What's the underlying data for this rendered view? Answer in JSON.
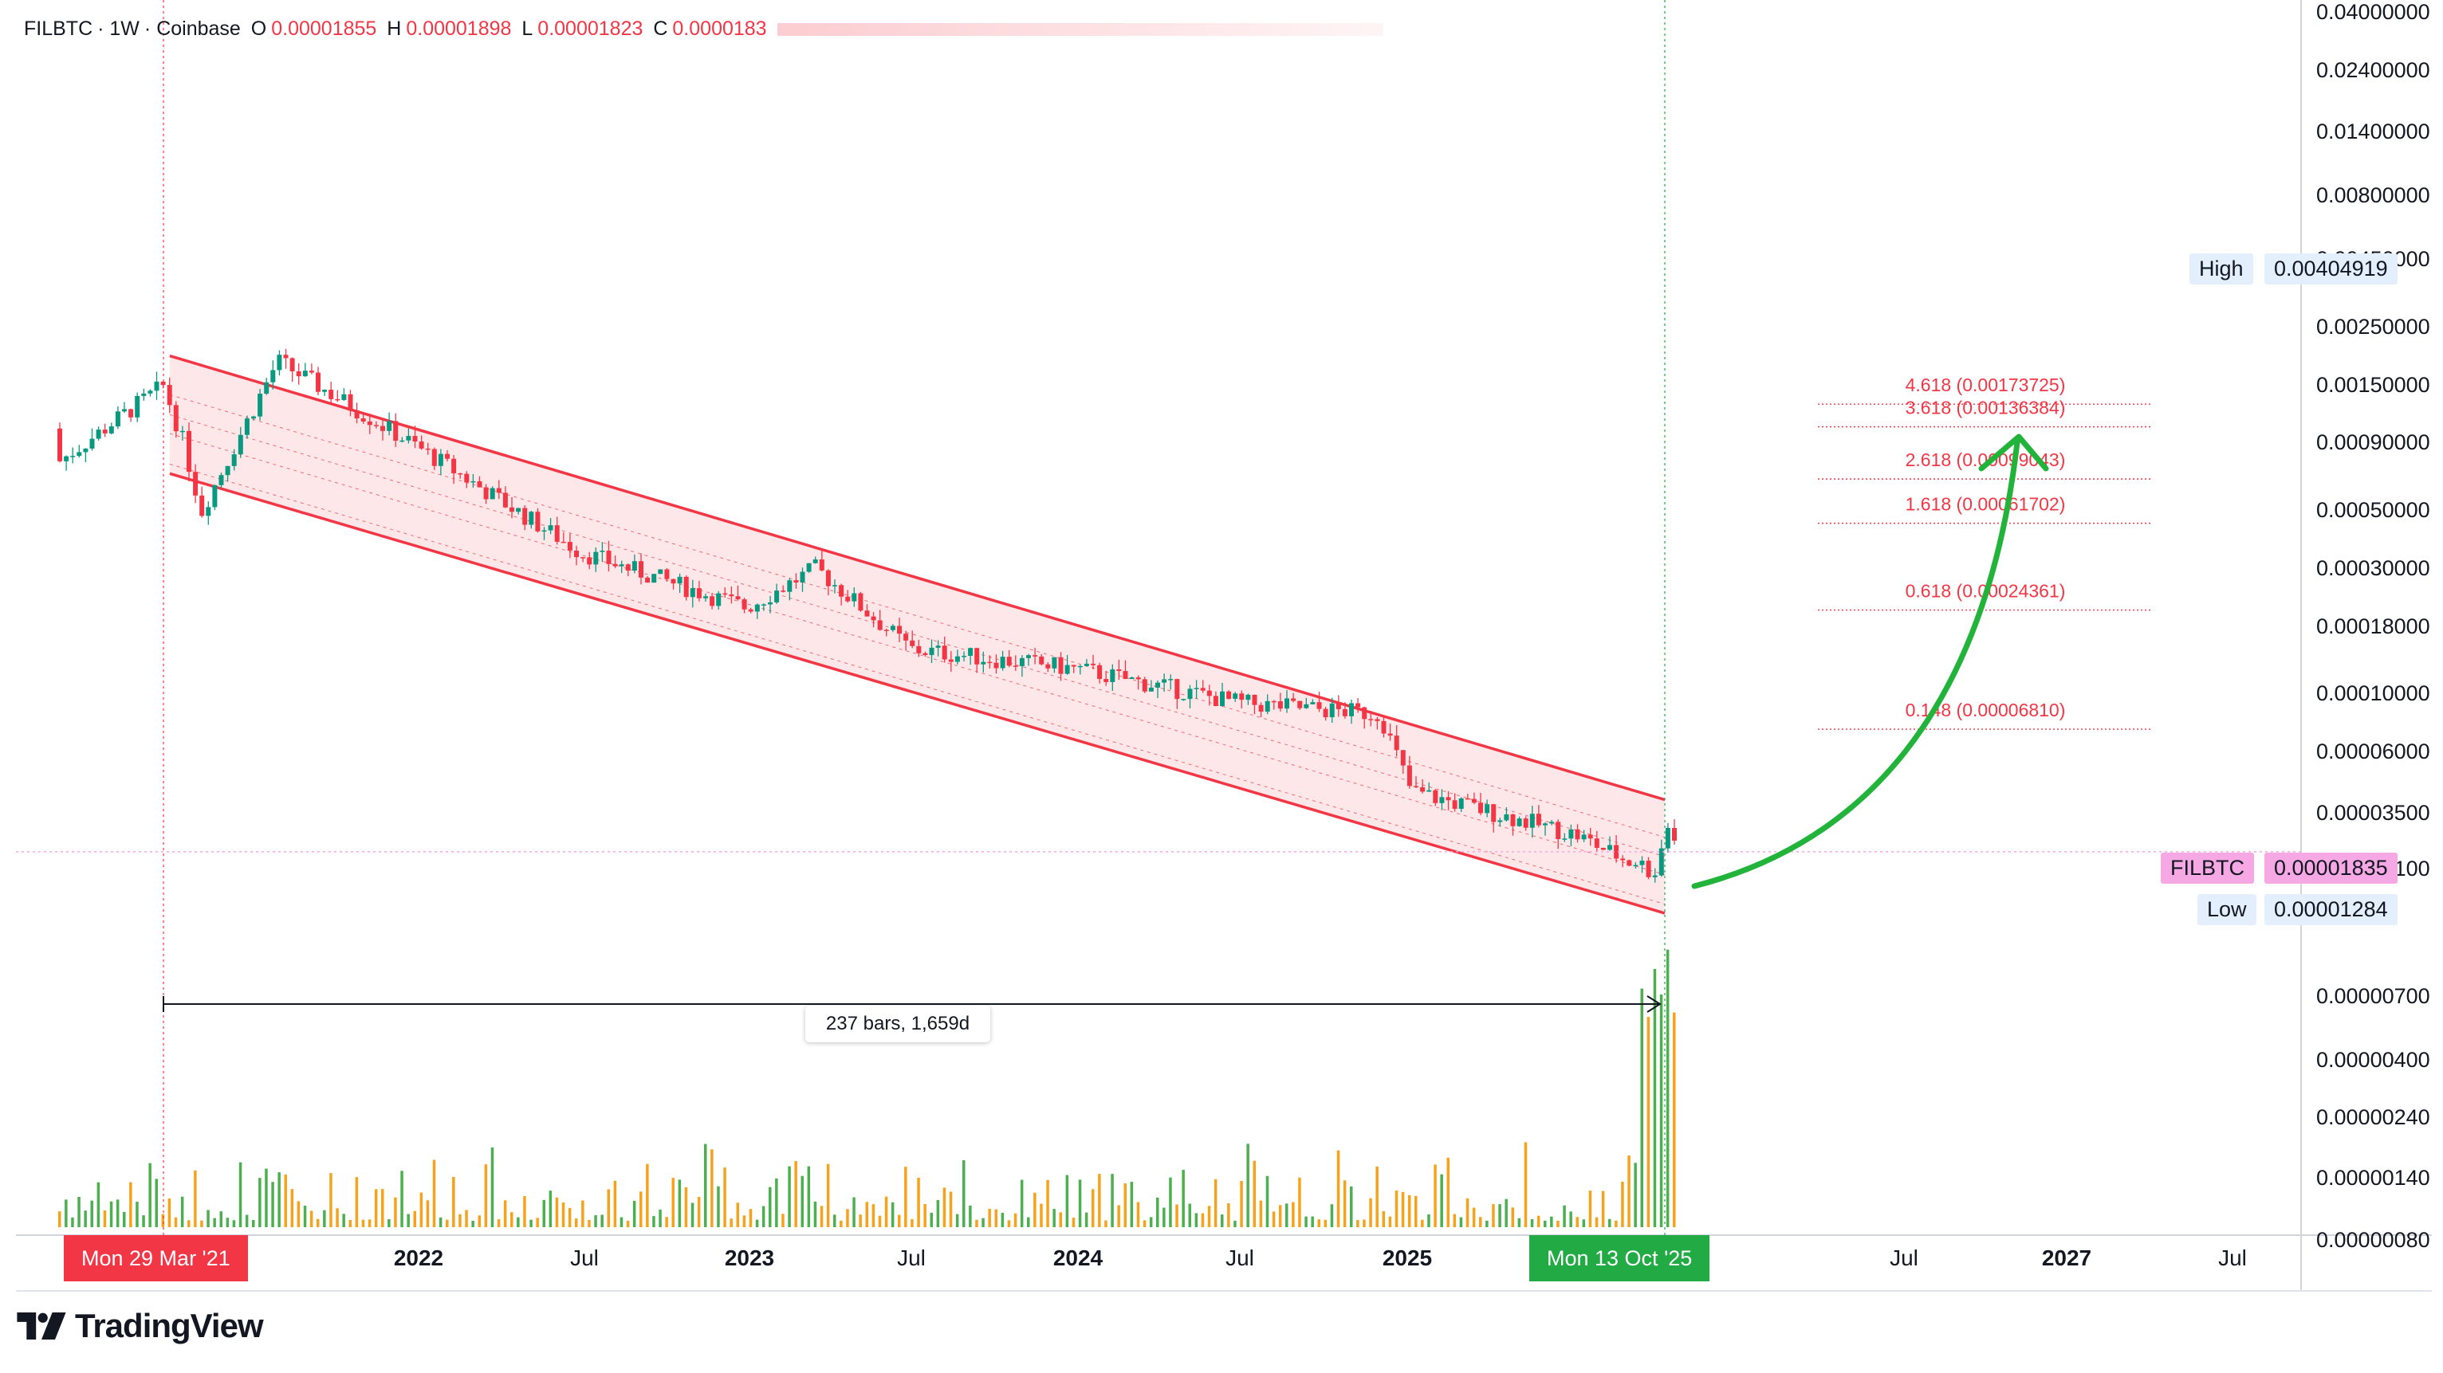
{
  "header": {
    "symbol": "FILBTC",
    "interval": "1W",
    "exchange": "Coinbase",
    "open_label": "O",
    "open": "0.00001855",
    "high_label": "H",
    "high": "0.00001898",
    "low_label": "L",
    "low": "0.00001823",
    "close_label": "C",
    "close": "0.0000183"
  },
  "price_axis": {
    "ticks": [
      "0.04000000",
      "0.02400000",
      "0.01400000",
      "0.00800000",
      "0.00450000",
      "0.00250000",
      "0.00150000",
      "0.00090000",
      "0.00050000",
      "0.00030000",
      "0.00018000",
      "0.00010000",
      "0.00006000",
      "0.00003500",
      "0.00002100",
      "0.00000700",
      "0.00000400",
      "0.00000240",
      "0.00000140",
      "0.00000080"
    ],
    "high_label": "High",
    "high_value": "0.00404919",
    "symbol_label": "FILBTC",
    "current_value": "0.00001835",
    "low_label": "Low",
    "low_value": "0.00001284"
  },
  "time_axis": {
    "ticks": [
      "2022",
      "Jul",
      "2023",
      "Jul",
      "2024",
      "Jul",
      "2025",
      "Jul",
      "Jul",
      "2027",
      "Jul"
    ],
    "start_marker": "Mon 29 Mar '21",
    "end_marker": "Mon 13 Oct '25"
  },
  "measure_label": "237 bars, 1,659d",
  "fib_levels": [
    {
      "label": "4.618 (0.00173725)",
      "value": 0.00173725
    },
    {
      "label": "3.618 (0.00136384)",
      "value": 0.00136384
    },
    {
      "label": "2.618 (0.00099043)",
      "value": 0.00099043
    },
    {
      "label": "1.618 (0.00061702)",
      "value": 0.00061702
    },
    {
      "label": "0.618 (0.00024361)",
      "value": 0.00024361
    },
    {
      "label": "0.148 (0.00006810)",
      "value": 6.81e-05
    }
  ],
  "brand": "TradingView",
  "colors": {
    "up": "#089981",
    "down": "#f23645",
    "vol_up": "#4caf50",
    "vol_down": "#f7a21b",
    "channel": "#f23645",
    "arrow": "#22b33a",
    "start_tag": "#f23645",
    "end_tag": "#22ab44"
  },
  "chart_data": {
    "type": "line",
    "title": "",
    "xlabel": "",
    "ylabel": "",
    "y_scale": "log",
    "ylim": [
      8e-07,
      0.04
    ],
    "series": [
      {
        "values_x": [
          "2021-03-29",
          "2021-04-19",
          "2021-05-10",
          "2021-08-02",
          "2022-01-03",
          "2022-07-04",
          "2023-01-02",
          "2023-03-20",
          "2023-07-03",
          "2024-01-01",
          "2024-07-01",
          "2024-12-02",
          "2025-01-06",
          "2025-07-07",
          "2025-10-06",
          "2025-10-13",
          "2025-10-20",
          "2025-10-27"
        ],
        "values_y": [
          0.0027,
          0.0015,
          0.0007,
          0.0035,
          0.0014,
          0.00045,
          0.00025,
          0.00038,
          0.00016,
          0.00013,
          9e-05,
          8e-05,
          3.5e-05,
          2.2e-05,
          1.4e-05,
          3e-05,
          1.9e-05,
          1.835e-05
        ]
      }
    ],
    "channel": {
      "upper": [
        [
          "2021-04-05",
          0.0037
        ],
        [
          "2025-10-13",
          3.2e-05
        ]
      ],
      "lower": [
        [
          "2021-04-05",
          0.00105
        ],
        [
          "2025-10-13",
          9.5e-06
        ]
      ]
    },
    "measure": {
      "bars": 237,
      "days": 1659
    }
  }
}
